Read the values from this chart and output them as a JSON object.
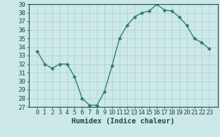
{
  "x": [
    0,
    1,
    2,
    3,
    4,
    5,
    6,
    7,
    8,
    9,
    10,
    11,
    12,
    13,
    14,
    15,
    16,
    17,
    18,
    19,
    20,
    21,
    22,
    23
  ],
  "y": [
    33.5,
    32.0,
    31.5,
    32.0,
    32.0,
    30.5,
    28.0,
    27.2,
    27.2,
    28.8,
    31.8,
    35.0,
    36.5,
    37.5,
    38.0,
    38.2,
    39.0,
    38.3,
    38.2,
    37.5,
    36.5,
    35.0,
    34.5,
    33.8
  ],
  "line_color": "#2d7d6e",
  "marker": "D",
  "markersize": 2.5,
  "linewidth": 1.0,
  "bg_color": "#cce8e8",
  "grid_color": "#aacfcf",
  "xlabel": "Humidex (Indice chaleur)",
  "ylim": [
    27,
    39
  ],
  "yticks": [
    27,
    28,
    29,
    30,
    31,
    32,
    33,
    34,
    35,
    36,
    37,
    38,
    39
  ],
  "xticks": [
    0,
    1,
    2,
    3,
    4,
    5,
    6,
    7,
    8,
    9,
    10,
    11,
    12,
    13,
    14,
    15,
    16,
    17,
    18,
    19,
    20,
    21,
    22,
    23
  ],
  "xlabel_fontsize": 7.5,
  "tick_fontsize": 6.5,
  "tick_color": "#1a4a4a",
  "xlabel_color": "#1a4a4a"
}
